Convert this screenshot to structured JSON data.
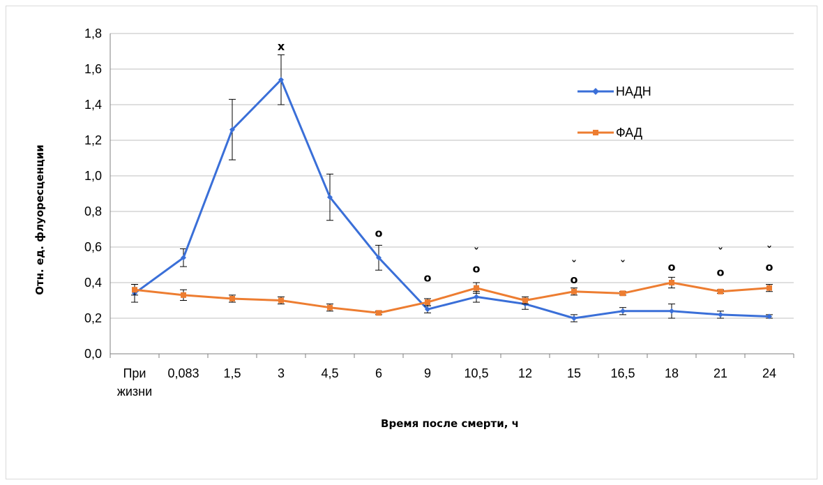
{
  "chart_data": {
    "type": "line",
    "title": "",
    "xlabel": "Время после смерти, ч",
    "ylabel": "Отн. ед. флуоресценции",
    "ylim": [
      0,
      1.8
    ],
    "yticks": [
      "0,0",
      "0,2",
      "0,4",
      "0,6",
      "0,8",
      "1,0",
      "1,2",
      "1,4",
      "1,6",
      "1,8"
    ],
    "grid": true,
    "legend_position": "top-right",
    "categories": [
      [
        "При",
        "жизни"
      ],
      [
        "0,083"
      ],
      [
        "1,5"
      ],
      [
        "3"
      ],
      [
        "4,5"
      ],
      [
        "6"
      ],
      [
        "9"
      ],
      [
        "10,5"
      ],
      [
        "12"
      ],
      [
        "15"
      ],
      [
        "16,5"
      ],
      [
        "18"
      ],
      [
        "21"
      ],
      [
        "24"
      ]
    ],
    "series": [
      {
        "name": "НАДН",
        "color": "#3a6fd8",
        "marker": "diamond",
        "values": [
          0.34,
          0.54,
          1.26,
          1.54,
          0.88,
          0.54,
          0.25,
          0.32,
          0.28,
          0.2,
          0.24,
          0.24,
          0.22,
          0.21
        ],
        "errors": [
          0.05,
          0.05,
          0.17,
          0.14,
          0.13,
          0.07,
          0.02,
          0.03,
          0.03,
          0.02,
          0.02,
          0.04,
          0.02,
          0.01
        ]
      },
      {
        "name": "ФАД",
        "color": "#ed7d31",
        "marker": "square",
        "values": [
          0.36,
          0.33,
          0.31,
          0.3,
          0.26,
          0.23,
          0.29,
          0.37,
          0.3,
          0.35,
          0.34,
          0.4,
          0.35,
          0.37
        ],
        "errors": [
          0.03,
          0.03,
          0.02,
          0.02,
          0.02,
          0.01,
          0.02,
          0.03,
          0.02,
          0.02,
          0.01,
          0.03,
          0.01,
          0.02
        ]
      }
    ],
    "annotations": [
      {
        "category_index": 3,
        "y": 1.73,
        "text": "x"
      },
      {
        "category_index": 5,
        "y": 0.68,
        "text": "о"
      },
      {
        "category_index": 6,
        "y": 0.43,
        "text": "о"
      },
      {
        "category_index": 7,
        "y": 0.57,
        "text": "ˇ"
      },
      {
        "category_index": 7,
        "y": 0.48,
        "text": "о"
      },
      {
        "category_index": 9,
        "y": 0.5,
        "text": "ˇ"
      },
      {
        "category_index": 9,
        "y": 0.42,
        "text": "о"
      },
      {
        "category_index": 10,
        "y": 0.5,
        "text": "ˇ"
      },
      {
        "category_index": 11,
        "y": 0.49,
        "text": "о"
      },
      {
        "category_index": 12,
        "y": 0.57,
        "text": "ˇ"
      },
      {
        "category_index": 12,
        "y": 0.46,
        "text": "о"
      },
      {
        "category_index": 13,
        "y": 0.58,
        "text": "ˇ"
      },
      {
        "category_index": 13,
        "y": 0.49,
        "text": "о"
      }
    ]
  }
}
